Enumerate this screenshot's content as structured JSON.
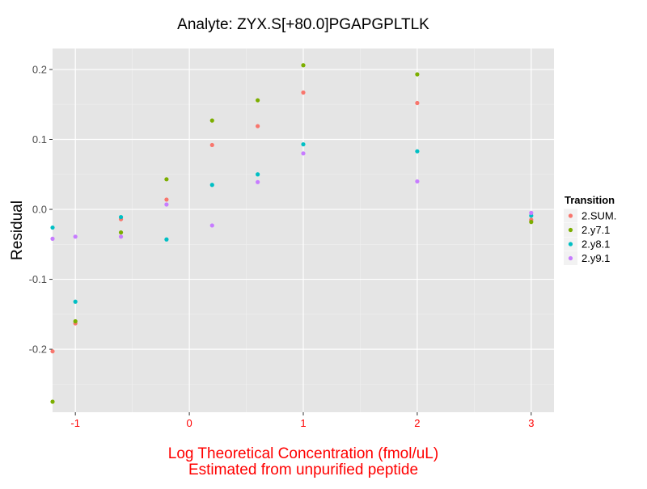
{
  "chart_data": {
    "type": "scatter",
    "title": "Analyte: ZYX.S[+80.0]PGAPGPLTLK",
    "xlabel": "Log Theoretical Concentration (fmol/uL)",
    "xlabel_line2": "Estimated from unpurified peptide",
    "ylabel": "Residual",
    "xlim": [
      -1.2,
      3.2
    ],
    "ylim": [
      -0.29,
      0.23
    ],
    "x_ticks": [
      -1,
      0,
      1,
      2,
      3
    ],
    "x_tick_labels": [
      "-1",
      "0",
      "1",
      "2",
      "3"
    ],
    "y_ticks": [
      -0.2,
      -0.1,
      0.0,
      0.1,
      0.2
    ],
    "y_tick_labels": [
      "-0.2",
      "-0.1",
      "0.0",
      "0.1",
      "0.2"
    ],
    "grid": true,
    "legend_title": "Transition",
    "legend_position": "right",
    "colors": {
      "panel_bg": "#e5e5e5",
      "grid_major": "#ffffff",
      "grid_minor": "#f0f0f0",
      "axis_label_accent": "#ff0000",
      "tick_label": "#4d4d4d"
    },
    "series": [
      {
        "name": "2.SUM.",
        "color": "#f8766d",
        "points": [
          [
            -1.2,
            -0.203
          ],
          [
            -1.0,
            -0.163
          ],
          [
            -0.6,
            -0.014
          ],
          [
            -0.2,
            0.014
          ],
          [
            0.2,
            0.092
          ],
          [
            0.6,
            0.119
          ],
          [
            1.0,
            0.167
          ],
          [
            2.0,
            0.152
          ],
          [
            3.0,
            -0.015
          ]
        ]
      },
      {
        "name": "2.y7.1",
        "color": "#7cae00",
        "points": [
          [
            -1.2,
            -0.275
          ],
          [
            -1.0,
            -0.16
          ],
          [
            -0.6,
            -0.033
          ],
          [
            -0.2,
            0.043
          ],
          [
            0.2,
            0.127
          ],
          [
            0.6,
            0.156
          ],
          [
            1.0,
            0.206
          ],
          [
            2.0,
            0.193
          ],
          [
            3.0,
            -0.018
          ]
        ]
      },
      {
        "name": "2.y8.1",
        "color": "#00bfc4",
        "points": [
          [
            -1.2,
            -0.026
          ],
          [
            -1.0,
            -0.132
          ],
          [
            -0.6,
            -0.011
          ],
          [
            -0.2,
            -0.043
          ],
          [
            0.2,
            0.035
          ],
          [
            0.6,
            0.05
          ],
          [
            1.0,
            0.093
          ],
          [
            2.0,
            0.083
          ],
          [
            3.0,
            -0.009
          ]
        ]
      },
      {
        "name": "2.y9.1",
        "color": "#c77cff",
        "points": [
          [
            -1.2,
            -0.042
          ],
          [
            -1.0,
            -0.039
          ],
          [
            -0.6,
            -0.039
          ],
          [
            -0.2,
            0.007
          ],
          [
            0.2,
            -0.023
          ],
          [
            0.6,
            0.039
          ],
          [
            1.0,
            0.08
          ],
          [
            2.0,
            0.04
          ],
          [
            3.0,
            -0.005
          ]
        ]
      }
    ]
  }
}
